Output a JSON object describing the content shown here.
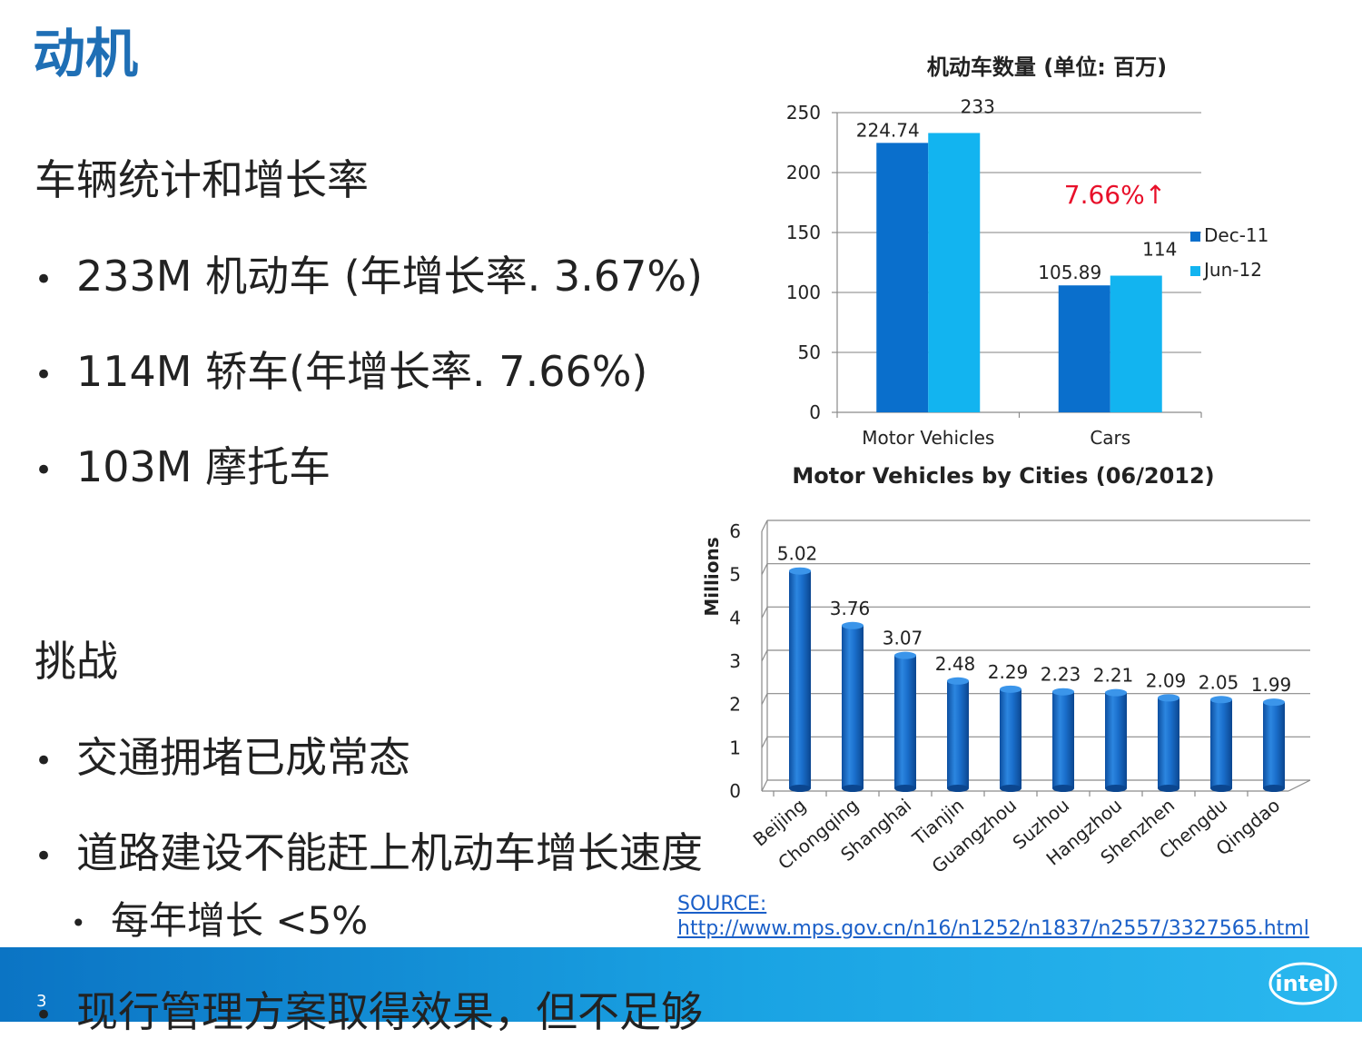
{
  "page": {
    "title": "动机",
    "section1": "车辆统计和增长率",
    "bullets1": [
      "233M 机动车 (年增长率. 3.67%)",
      "114M 轿车(年增长率. 7.66%)",
      "103M 摩托车"
    ],
    "section2": "挑战",
    "bullets2": [
      "交通拥堵已成常态",
      "道路建设不能赶上机动车增长速度"
    ],
    "sub_bullet": "每年增长 <5%",
    "bullet_last": "现行管理方案取得效果，但不足够",
    "page_number": "3",
    "source_label": "SOURCE:",
    "source_url": "http://www.mps.gov.cn/n16/n1252/n1837/n2557/3327565.html",
    "logo_text": "intel",
    "colors": {
      "title": "#1f6fb5",
      "dec11": "#0a6fcc",
      "jun12": "#12b4f0",
      "city_bar": "#1366c4",
      "annotation": "#e8102a",
      "footer": "#1aa3e3"
    }
  },
  "chart_data": [
    {
      "type": "bar",
      "title": "机动车数量 (单位: 百万)",
      "categories": [
        "Motor Vehicles",
        "Cars"
      ],
      "series": [
        {
          "name": "Dec-11",
          "values": [
            224.74,
            105.89
          ],
          "labels": [
            "224.74",
            "105.89"
          ]
        },
        {
          "name": "Jun-12",
          "values": [
            233,
            114
          ],
          "labels": [
            "233",
            "114"
          ]
        }
      ],
      "ylim": [
        0,
        250
      ],
      "yticks": [
        "0",
        "50",
        "100",
        "150",
        "200",
        "250"
      ],
      "grid": true,
      "legend": "right",
      "annotation": "7.66%↑"
    },
    {
      "type": "bar",
      "title": "Motor Vehicles by Cities (06/2012)",
      "ylabel": "Millions",
      "categories": [
        "Beijing",
        "Chongqing",
        "Shanghai",
        "Tianjin",
        "Guangzhou",
        "Suzhou",
        "Hangzhou",
        "Shenzhen",
        "Chengdu",
        "Qingdao"
      ],
      "values": [
        5.02,
        3.76,
        3.07,
        2.48,
        2.29,
        2.23,
        2.21,
        2.09,
        2.05,
        1.99
      ],
      "labels": [
        "5.02",
        "3.76",
        "3.07",
        "2.48",
        "2.29",
        "2.23",
        "2.21",
        "2.09",
        "2.05",
        "1.99"
      ],
      "ylim": [
        0,
        6
      ],
      "yticks": [
        "0",
        "1",
        "2",
        "3",
        "4",
        "5",
        "6"
      ],
      "grid": true
    }
  ]
}
